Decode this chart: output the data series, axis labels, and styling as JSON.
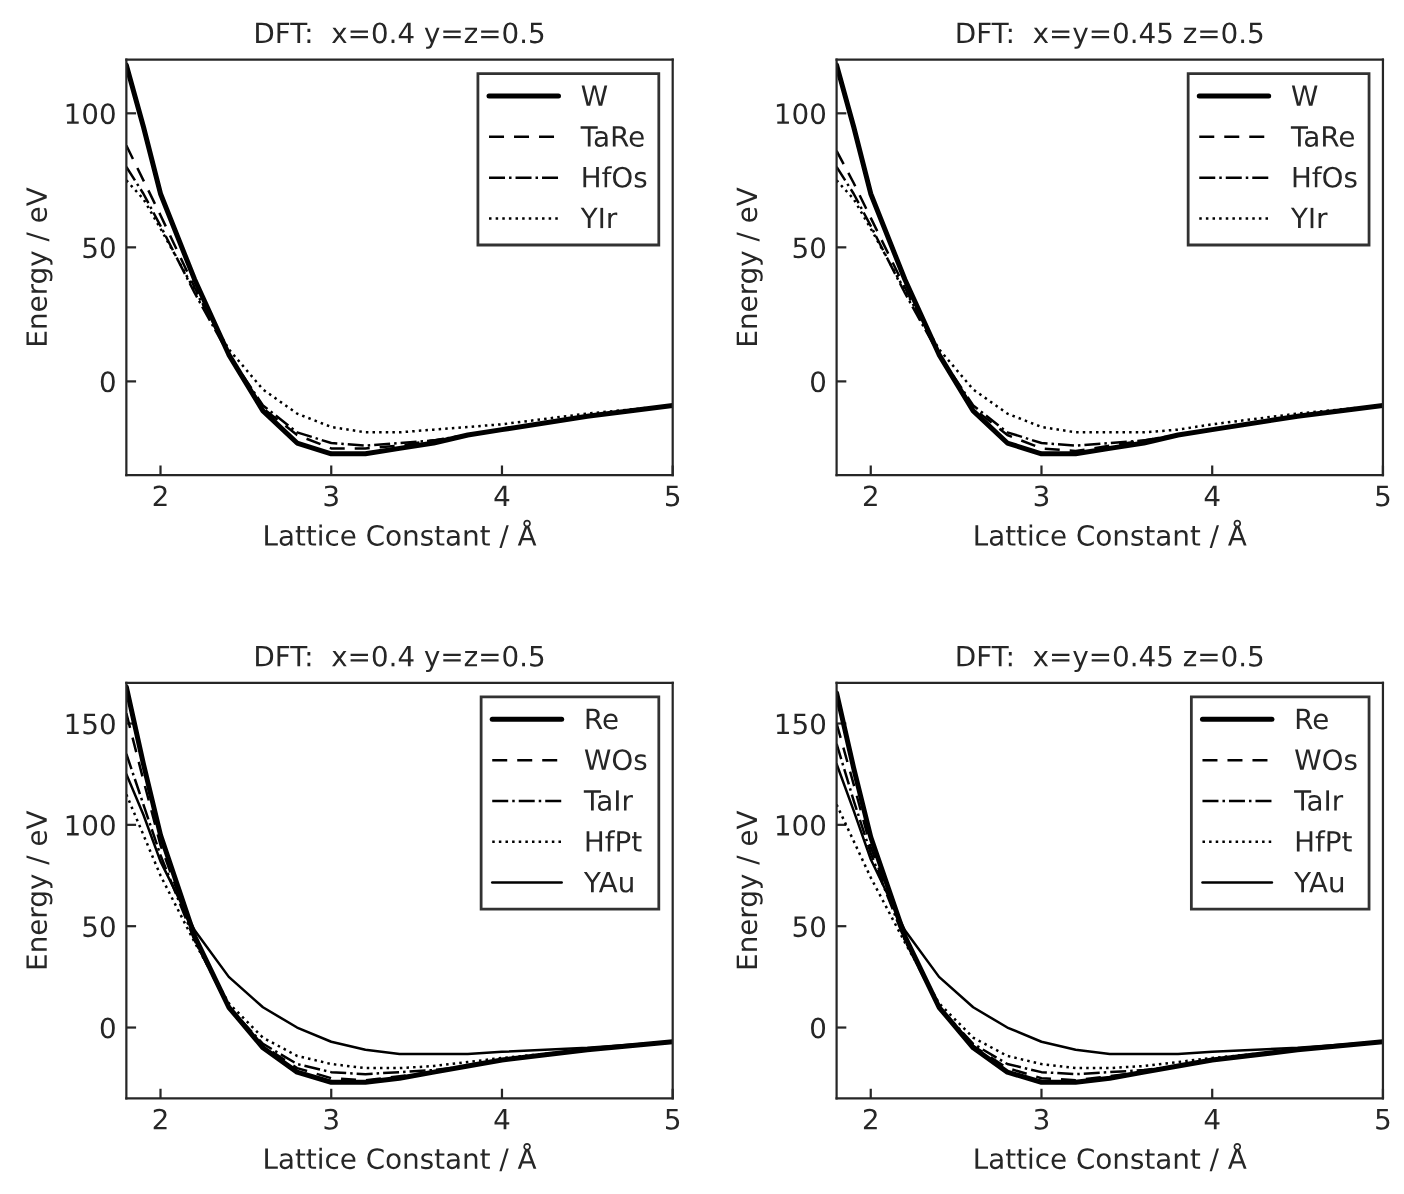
{
  "chart_data": [
    {
      "type": "line",
      "title": "DFT:  x=0.4 y=z=0.5",
      "xlabel": "Lattice Constant / Å",
      "ylabel": "Energy / eV",
      "xlim": [
        1.8,
        5
      ],
      "xticks": [
        2,
        3,
        4,
        5
      ],
      "ylim": [
        -35,
        120
      ],
      "yticks": [
        0,
        50,
        100
      ],
      "legend": "top right",
      "grid": false,
      "x": [
        1.8,
        1.9,
        2.0,
        2.2,
        2.4,
        2.6,
        2.8,
        3.0,
        3.2,
        3.4,
        3.6,
        3.8,
        4.0,
        4.5,
        5.0
      ],
      "series": [
        {
          "name": "W",
          "color": "#000000",
          "line_style": "solid",
          "values": [
            118,
            95,
            70,
            38,
            10,
            -11,
            -23,
            -27,
            -27,
            -25,
            -23,
            -20,
            -18,
            -13,
            -9
          ]
        },
        {
          "name": "TaRe",
          "color": "#000000",
          "line_style": "dashed",
          "values": [
            88,
            75,
            62,
            35,
            10,
            -10,
            -20,
            -25,
            -25,
            -24,
            -22,
            -20,
            -18,
            -13,
            -9
          ]
        },
        {
          "name": "HfOs",
          "color": "#000000",
          "line_style": "dashdot",
          "values": [
            80,
            70,
            58,
            33,
            10,
            -9,
            -19,
            -23,
            -24,
            -23,
            -22,
            -20,
            -18,
            -13,
            -9
          ]
        },
        {
          "name": "YIr",
          "color": "#000000",
          "line_style": "dotted",
          "values": [
            75,
            68,
            57,
            34,
            12,
            -3,
            -12,
            -17,
            -19,
            -19,
            -18,
            -17,
            -16,
            -12,
            -9
          ]
        }
      ]
    },
    {
      "type": "line",
      "title": "DFT:  x=y=0.45 z=0.5",
      "xlabel": "Lattice Constant / Å",
      "ylabel": "Energy / eV",
      "xlim": [
        1.8,
        5
      ],
      "xticks": [
        2,
        3,
        4,
        5
      ],
      "ylim": [
        -35,
        120
      ],
      "yticks": [
        0,
        50,
        100
      ],
      "legend": "top right",
      "grid": false,
      "x": [
        1.8,
        1.9,
        2.0,
        2.2,
        2.4,
        2.6,
        2.8,
        3.0,
        3.2,
        3.4,
        3.6,
        3.8,
        4.0,
        4.5,
        5.0
      ],
      "series": [
        {
          "name": "W",
          "color": "#000000",
          "line_style": "solid",
          "values": [
            118,
            95,
            70,
            38,
            10,
            -11,
            -23,
            -27,
            -27,
            -25,
            -23,
            -20,
            -18,
            -13,
            -9
          ]
        },
        {
          "name": "TaRe",
          "color": "#000000",
          "line_style": "dashed",
          "values": [
            86,
            74,
            61,
            35,
            10,
            -10,
            -20,
            -25,
            -26,
            -24,
            -22,
            -20,
            -18,
            -13,
            -9
          ]
        },
        {
          "name": "HfOs",
          "color": "#000000",
          "line_style": "dashdot",
          "values": [
            80,
            70,
            58,
            33,
            10,
            -9,
            -19,
            -23,
            -24,
            -23,
            -22,
            -20,
            -18,
            -13,
            -9
          ]
        },
        {
          "name": "YIr",
          "color": "#000000",
          "line_style": "dotted",
          "values": [
            75,
            68,
            57,
            34,
            12,
            -3,
            -12,
            -17,
            -19,
            -19,
            -19,
            -18,
            -16,
            -12,
            -9
          ]
        }
      ]
    },
    {
      "type": "line",
      "title": "DFT:  x=0.4 y=z=0.5",
      "xlabel": "Lattice Constant / Å",
      "ylabel": "Energy / eV",
      "xlim": [
        1.8,
        5
      ],
      "xticks": [
        2,
        3,
        4,
        5
      ],
      "ylim": [
        -35,
        170
      ],
      "yticks": [
        0,
        50,
        100,
        150
      ],
      "legend": "top right",
      "grid": false,
      "x": [
        1.8,
        1.9,
        2.0,
        2.2,
        2.4,
        2.6,
        2.8,
        3.0,
        3.2,
        3.4,
        3.6,
        3.8,
        4.0,
        4.5,
        5.0
      ],
      "series": [
        {
          "name": "Re",
          "color": "#000000",
          "line_style": "solid",
          "values": [
            168,
            130,
            95,
            45,
            10,
            -10,
            -22,
            -27,
            -27,
            -25,
            -22,
            -19,
            -16,
            -11,
            -7
          ]
        },
        {
          "name": "WOs",
          "color": "#000000",
          "line_style": "dashed",
          "values": [
            155,
            122,
            90,
            44,
            10,
            -9,
            -20,
            -25,
            -26,
            -24,
            -22,
            -19,
            -16,
            -11,
            -7
          ]
        },
        {
          "name": "TaIr",
          "color": "#000000",
          "line_style": "dashdot",
          "values": [
            135,
            110,
            85,
            43,
            10,
            -8,
            -18,
            -22,
            -23,
            -22,
            -21,
            -19,
            -16,
            -11,
            -7
          ]
        },
        {
          "name": "HfPt",
          "color": "#000000",
          "line_style": "dotted",
          "values": [
            115,
            95,
            75,
            42,
            12,
            -5,
            -14,
            -18,
            -20,
            -20,
            -19,
            -17,
            -15,
            -11,
            -7
          ]
        },
        {
          "name": "YAu",
          "color": "#000000",
          "line_style": "solid",
          "values": [
            125,
            105,
            82,
            48,
            25,
            10,
            0,
            -7,
            -11,
            -13,
            -13,
            -13,
            -12,
            -10,
            -7
          ]
        }
      ]
    },
    {
      "type": "line",
      "title": "DFT:  x=y=0.45 z=0.5",
      "xlabel": "Lattice Constant / Å",
      "ylabel": "Energy / eV",
      "xlim": [
        1.8,
        5
      ],
      "xticks": [
        2,
        3,
        4,
        5
      ],
      "ylim": [
        -35,
        170
      ],
      "yticks": [
        0,
        50,
        100,
        150
      ],
      "legend": "top right",
      "grid": false,
      "x": [
        1.8,
        1.9,
        2.0,
        2.2,
        2.4,
        2.6,
        2.8,
        3.0,
        3.2,
        3.4,
        3.6,
        3.8,
        4.0,
        4.5,
        5.0
      ],
      "series": [
        {
          "name": "Re",
          "color": "#000000",
          "line_style": "solid",
          "values": [
            165,
            128,
            94,
            45,
            10,
            -10,
            -22,
            -27,
            -27,
            -25,
            -22,
            -19,
            -16,
            -11,
            -7
          ]
        },
        {
          "name": "WOs",
          "color": "#000000",
          "line_style": "dashed",
          "values": [
            150,
            120,
            89,
            44,
            10,
            -9,
            -20,
            -25,
            -26,
            -24,
            -22,
            -19,
            -16,
            -11,
            -7
          ]
        },
        {
          "name": "TaIr",
          "color": "#000000",
          "line_style": "dashdot",
          "values": [
            140,
            112,
            86,
            43,
            10,
            -8,
            -18,
            -22,
            -23,
            -22,
            -21,
            -19,
            -16,
            -11,
            -7
          ]
        },
        {
          "name": "HfPt",
          "color": "#000000",
          "line_style": "dotted",
          "values": [
            110,
            92,
            74,
            42,
            12,
            -5,
            -14,
            -18,
            -20,
            -20,
            -19,
            -17,
            -15,
            -11,
            -7
          ]
        },
        {
          "name": "YAu",
          "color": "#000000",
          "line_style": "solid",
          "values": [
            130,
            107,
            83,
            48,
            25,
            10,
            0,
            -7,
            -11,
            -13,
            -13,
            -13,
            -12,
            -10,
            -7
          ]
        }
      ]
    }
  ]
}
